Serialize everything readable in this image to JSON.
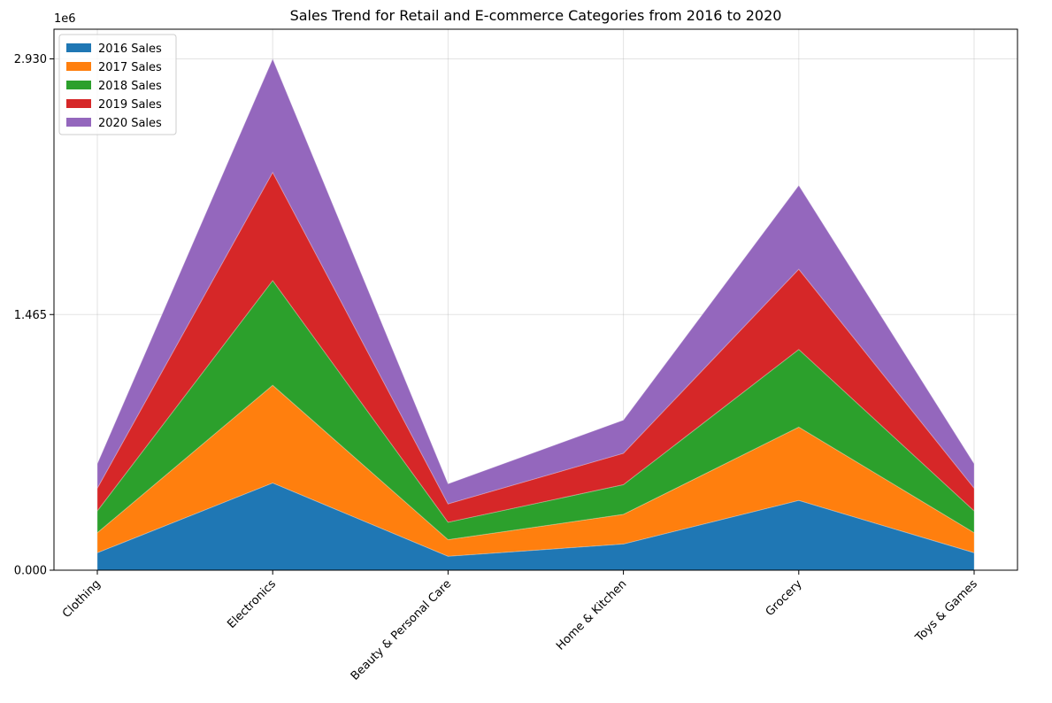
{
  "chart_data": {
    "type": "area",
    "stacked": true,
    "title": "Sales Trend for Retail and E-commerce Categories from 2016 to 2020",
    "xlabel": "",
    "ylabel": "",
    "y_offset_label": "1e6",
    "categories": [
      "Clothing",
      "Electronics",
      "Beauty & Personal Care",
      "Home & Kitchen",
      "Grocery",
      "Toys & Games"
    ],
    "yticks": [
      "0.000",
      "1.465",
      "2.930"
    ],
    "ylim": [
      0,
      3100000
    ],
    "grid": true,
    "legend_position": "top-left",
    "series": [
      {
        "name": "2016 Sales",
        "color": "#1f77b4",
        "values": [
          100000,
          500000,
          80000,
          150000,
          400000,
          100000
        ]
      },
      {
        "name": "2017 Sales",
        "color": "#ff7f0e",
        "values": [
          115000,
          560000,
          95000,
          170000,
          420000,
          115000
        ]
      },
      {
        "name": "2018 Sales",
        "color": "#2ca02c",
        "values": [
          125000,
          600000,
          100000,
          170000,
          445000,
          125000
        ]
      },
      {
        "name": "2019 Sales",
        "color": "#d62728",
        "values": [
          130000,
          620000,
          105000,
          180000,
          460000,
          130000
        ]
      },
      {
        "name": "2020 Sales",
        "color": "#9467bd",
        "values": [
          140000,
          650000,
          115000,
          190000,
          480000,
          140000
        ]
      }
    ]
  }
}
